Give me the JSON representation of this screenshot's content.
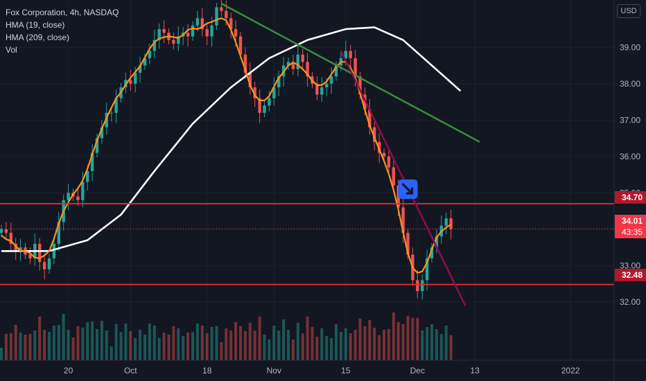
{
  "legend": {
    "symbol": "Fox Corporation, 4h, NASDAQ",
    "hma_fast": "HMA (19, close)",
    "hma_slow": "HMA (209, close)",
    "volume": "Vol"
  },
  "currency": "USD",
  "price_tags": {
    "resistance": "34.70",
    "support": "32.48",
    "last_price": "34.01",
    "countdown": "43:35"
  },
  "colors": {
    "background": "#131722",
    "up_candle": "#26a69a",
    "down_candle": "#ef5350",
    "hma_fast": "#f7941d",
    "hma_slow": "#ffffff",
    "horizontal_levels": "#d32f2f",
    "trendline_green": "#388e3c",
    "trendline_maroon": "#880e4f",
    "idea_marker": "#2962ff"
  },
  "chart_data": {
    "type": "line",
    "title": "Fox Corporation, 4h, NASDAQ",
    "y_axis": {
      "ticks": [
        32.0,
        33.0,
        34.0,
        35.0,
        36.0,
        37.0,
        38.0,
        39.0
      ],
      "tick_labels": [
        "32.00",
        "33.00",
        "",
        "35.00",
        "36.00",
        "37.00",
        "38.00",
        "39.00"
      ],
      "range": [
        30.4,
        40.3
      ]
    },
    "x_axis": {
      "ticks": [
        {
          "label": "20",
          "bar": 14
        },
        {
          "label": "Oct",
          "bar": 27
        },
        {
          "label": "18",
          "bar": 43
        },
        {
          "label": "Nov",
          "bar": 57
        },
        {
          "label": "15",
          "bar": 72
        },
        {
          "label": "Dec",
          "bar": 87
        },
        {
          "label": "13",
          "bar": 99
        },
        {
          "label": "2022",
          "bar": 119
        }
      ]
    },
    "close_series_approx": [
      34.0,
      33.9,
      33.6,
      33.4,
      33.5,
      33.3,
      33.2,
      33.6,
      33.1,
      32.9,
      33.2,
      33.6,
      34.2,
      34.8,
      35.0,
      34.9,
      34.8,
      35.3,
      35.6,
      36.1,
      36.5,
      36.8,
      37.2,
      37.2,
      37.6,
      37.9,
      38.1,
      38.0,
      38.3,
      38.5,
      38.7,
      38.9,
      39.2,
      39.5,
      39.4,
      39.2,
      39.1,
      39.3,
      39.4,
      39.3,
      39.6,
      39.8,
      39.5,
      39.3,
      39.6,
      40.1,
      40.0,
      39.8,
      39.5,
      39.3,
      38.8,
      38.3,
      37.9,
      37.6,
      37.2,
      37.4,
      37.6,
      37.9,
      38.2,
      38.5,
      38.6,
      38.4,
      38.8,
      38.6,
      38.2,
      38.0,
      37.7,
      37.9,
      38.0,
      38.2,
      38.5,
      38.7,
      38.9,
      38.7,
      38.2,
      37.7,
      37.3,
      36.8,
      36.4,
      36.1,
      36.0,
      35.7,
      35.2,
      34.6,
      33.9,
      33.3,
      32.6,
      32.3,
      32.6,
      33.2,
      33.5,
      33.8,
      34.1,
      34.3,
      34.0
    ],
    "series": [
      {
        "name": "HMA (19, close)",
        "color": "#f7941d"
      },
      {
        "name": "HMA (209, close)",
        "color": "#ffffff"
      }
    ],
    "horizontal_levels": [
      34.7,
      32.48
    ],
    "last_price": 34.01,
    "annotations": [
      {
        "type": "trendline",
        "color": "#388e3c",
        "from": {
          "bar": 46,
          "price": 40.2
        },
        "to": {
          "bar": 100,
          "price": 36.4
        }
      },
      {
        "type": "trendline",
        "color": "#880e4f",
        "from": {
          "bar": 71,
          "price": 38.9
        },
        "to": {
          "bar": 97,
          "price": 31.9
        }
      },
      {
        "type": "idea-marker",
        "direction": "up",
        "at": {
          "bar": 85,
          "price": 35.1
        }
      }
    ]
  }
}
